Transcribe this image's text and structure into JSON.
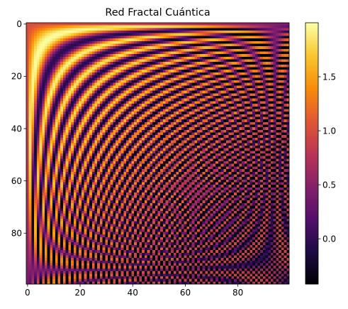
{
  "chart_data": {
    "type": "heatmap",
    "title": "Red Fractal Cuántica",
    "xlabel": "",
    "ylabel": "",
    "rows": 100,
    "cols": 100,
    "value_formula": "sin(x*y/10) + sin(x/5)*cos(y/5) ... approx: 1 + sin(i*j/30)",
    "xlim": [
      -0.5,
      99.5
    ],
    "ylim": [
      99.5,
      -0.5
    ],
    "x_ticks": [
      0,
      20,
      40,
      60,
      80
    ],
    "x_tick_labels": [
      "0",
      "20",
      "40",
      "60",
      "80"
    ],
    "y_ticks": [
      0,
      20,
      40,
      60,
      80
    ],
    "y_tick_labels": [
      "0",
      "20",
      "40",
      "60",
      "80"
    ],
    "colormap": "inferno",
    "colorbar": {
      "vmin": -0.42,
      "vmax": 2.0,
      "ticks": [
        0.0,
        0.5,
        1.0,
        1.5
      ],
      "tick_labels": [
        "0.0",
        "0.5",
        "1.0",
        "1.5"
      ]
    },
    "grid": false,
    "legend": "none"
  }
}
